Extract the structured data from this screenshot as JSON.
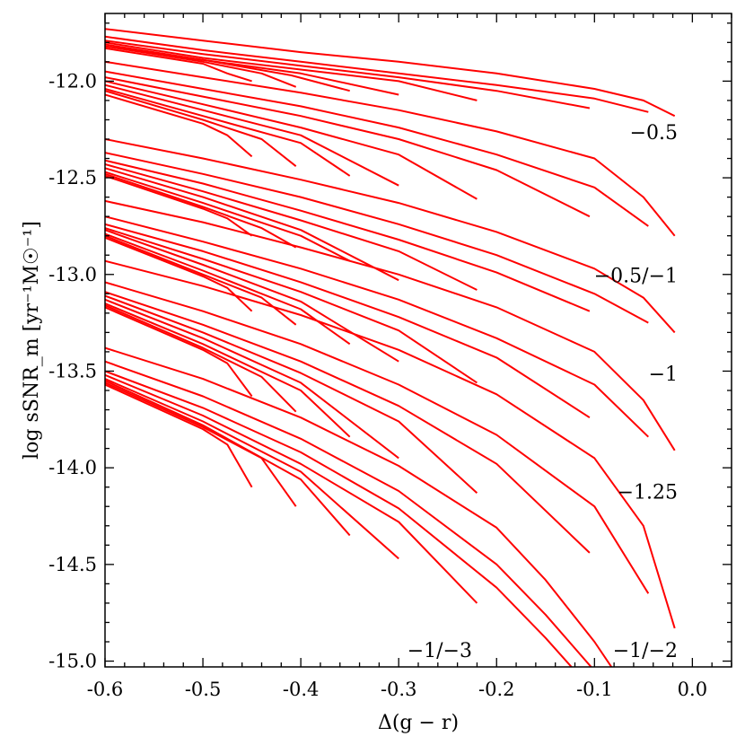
{
  "chart_data": {
    "type": "line",
    "title": "",
    "xlabel": "Δ(g − r)",
    "ylabel": "log sSNR_m [yr⁻¹M☉⁻¹]",
    "xlim": [
      -0.6,
      0.04
    ],
    "ylim": [
      -15.03,
      -11.65
    ],
    "grid": false,
    "legend": "none",
    "line_color": "#ff0000",
    "x_ticks": [
      -0.6,
      -0.5,
      -0.4,
      -0.3,
      -0.2,
      -0.1,
      0.0
    ],
    "x_tick_labels": [
      "-0.6",
      "-0.5",
      "-0.4",
      "-0.3",
      "-0.2",
      "-0.1",
      "0.0"
    ],
    "y_ticks": [
      -15.0,
      -14.5,
      -14.0,
      -13.5,
      -13.0,
      -12.5,
      -12.0
    ],
    "y_tick_labels": [
      "-15.0",
      "-14.5",
      "-14.0",
      "-13.5",
      "-13.0",
      "-12.5",
      "-12.0"
    ],
    "annotations": [
      {
        "text": "−0.5",
        "x": -0.015,
        "y": -12.3
      },
      {
        "text": "−0.5/−1",
        "x": -0.015,
        "y": -13.04
      },
      {
        "text": "−1",
        "x": -0.015,
        "y": -13.55
      },
      {
        "text": "−1.25",
        "x": -0.015,
        "y": -14.16
      },
      {
        "text": "−1/−3",
        "x": -0.225,
        "y": -14.98
      },
      {
        "text": "−1/−2",
        "x": -0.015,
        "y": -14.98
      }
    ],
    "series": [
      {
        "values": [
          [
            -0.6,
            -11.73
          ],
          [
            -0.5,
            -11.79
          ],
          [
            -0.4,
            -11.85
          ],
          [
            -0.3,
            -11.9
          ],
          [
            -0.2,
            -11.96
          ],
          [
            -0.1,
            -12.04
          ],
          [
            -0.05,
            -12.1
          ],
          [
            -0.018,
            -12.18
          ]
        ]
      },
      {
        "values": [
          [
            -0.6,
            -11.77
          ],
          [
            -0.5,
            -11.84
          ],
          [
            -0.4,
            -11.9
          ],
          [
            -0.3,
            -11.96
          ],
          [
            -0.2,
            -12.02
          ],
          [
            -0.1,
            -12.09
          ],
          [
            -0.045,
            -12.16
          ]
        ]
      },
      {
        "values": [
          [
            -0.6,
            -11.79
          ],
          [
            -0.5,
            -11.86
          ],
          [
            -0.4,
            -11.92
          ],
          [
            -0.3,
            -11.98
          ],
          [
            -0.2,
            -12.05
          ],
          [
            -0.105,
            -12.14
          ]
        ]
      },
      {
        "values": [
          [
            -0.6,
            -11.8
          ],
          [
            -0.5,
            -11.88
          ],
          [
            -0.4,
            -11.94
          ],
          [
            -0.3,
            -12.0
          ],
          [
            -0.22,
            -12.1
          ]
        ]
      },
      {
        "values": [
          [
            -0.6,
            -11.81
          ],
          [
            -0.5,
            -11.89
          ],
          [
            -0.4,
            -11.96
          ],
          [
            -0.3,
            -12.07
          ]
        ]
      },
      {
        "values": [
          [
            -0.6,
            -11.82
          ],
          [
            -0.5,
            -11.89
          ],
          [
            -0.41,
            -11.97
          ],
          [
            -0.35,
            -12.05
          ]
        ]
      },
      {
        "values": [
          [
            -0.6,
            -11.82
          ],
          [
            -0.5,
            -11.9
          ],
          [
            -0.44,
            -11.96
          ],
          [
            -0.405,
            -12.03
          ]
        ]
      },
      {
        "values": [
          [
            -0.6,
            -11.83
          ],
          [
            -0.5,
            -11.91
          ],
          [
            -0.475,
            -11.96
          ],
          [
            -0.45,
            -12.0
          ]
        ]
      },
      {
        "values": [
          [
            -0.6,
            -11.9
          ],
          [
            -0.5,
            -11.98
          ],
          [
            -0.4,
            -12.06
          ],
          [
            -0.3,
            -12.15
          ],
          [
            -0.2,
            -12.26
          ],
          [
            -0.1,
            -12.4
          ],
          [
            -0.05,
            -12.6
          ],
          [
            -0.018,
            -12.8
          ]
        ]
      },
      {
        "values": [
          [
            -0.6,
            -11.95
          ],
          [
            -0.5,
            -12.04
          ],
          [
            -0.4,
            -12.13
          ],
          [
            -0.3,
            -12.24
          ],
          [
            -0.2,
            -12.38
          ],
          [
            -0.1,
            -12.55
          ],
          [
            -0.045,
            -12.75
          ]
        ]
      },
      {
        "values": [
          [
            -0.6,
            -11.98
          ],
          [
            -0.5,
            -12.08
          ],
          [
            -0.4,
            -12.18
          ],
          [
            -0.3,
            -12.3
          ],
          [
            -0.2,
            -12.46
          ],
          [
            -0.105,
            -12.7
          ]
        ]
      },
      {
        "values": [
          [
            -0.6,
            -12.0
          ],
          [
            -0.5,
            -12.12
          ],
          [
            -0.4,
            -12.24
          ],
          [
            -0.3,
            -12.38
          ],
          [
            -0.22,
            -12.61
          ]
        ]
      },
      {
        "values": [
          [
            -0.6,
            -12.02
          ],
          [
            -0.5,
            -12.15
          ],
          [
            -0.4,
            -12.28
          ],
          [
            -0.3,
            -12.54
          ]
        ]
      },
      {
        "values": [
          [
            -0.6,
            -12.04
          ],
          [
            -0.5,
            -12.18
          ],
          [
            -0.4,
            -12.32
          ],
          [
            -0.35,
            -12.49
          ]
        ]
      },
      {
        "values": [
          [
            -0.6,
            -12.05
          ],
          [
            -0.5,
            -12.2
          ],
          [
            -0.44,
            -12.3
          ],
          [
            -0.405,
            -12.44
          ]
        ]
      },
      {
        "values": [
          [
            -0.6,
            -12.07
          ],
          [
            -0.5,
            -12.22
          ],
          [
            -0.475,
            -12.28
          ],
          [
            -0.45,
            -12.39
          ]
        ]
      },
      {
        "values": [
          [
            -0.6,
            -12.3
          ],
          [
            -0.5,
            -12.4
          ],
          [
            -0.4,
            -12.51
          ],
          [
            -0.3,
            -12.63
          ],
          [
            -0.2,
            -12.78
          ],
          [
            -0.1,
            -12.97
          ],
          [
            -0.05,
            -13.12
          ],
          [
            -0.018,
            -13.3
          ]
        ]
      },
      {
        "values": [
          [
            -0.6,
            -12.37
          ],
          [
            -0.5,
            -12.48
          ],
          [
            -0.4,
            -12.6
          ],
          [
            -0.3,
            -12.74
          ],
          [
            -0.2,
            -12.9
          ],
          [
            -0.1,
            -13.1
          ],
          [
            -0.045,
            -13.25
          ]
        ]
      },
      {
        "values": [
          [
            -0.6,
            -12.41
          ],
          [
            -0.5,
            -12.53
          ],
          [
            -0.4,
            -12.67
          ],
          [
            -0.3,
            -12.82
          ],
          [
            -0.2,
            -12.99
          ],
          [
            -0.105,
            -13.19
          ]
        ]
      },
      {
        "values": [
          [
            -0.6,
            -12.43
          ],
          [
            -0.5,
            -12.57
          ],
          [
            -0.4,
            -12.72
          ],
          [
            -0.3,
            -12.88
          ],
          [
            -0.22,
            -13.08
          ]
        ]
      },
      {
        "values": [
          [
            -0.6,
            -12.45
          ],
          [
            -0.5,
            -12.6
          ],
          [
            -0.4,
            -12.77
          ],
          [
            -0.3,
            -13.03
          ]
        ]
      },
      {
        "values": [
          [
            -0.6,
            -12.47
          ],
          [
            -0.5,
            -12.63
          ],
          [
            -0.4,
            -12.8
          ],
          [
            -0.35,
            -12.93
          ]
        ]
      },
      {
        "values": [
          [
            -0.6,
            -12.48
          ],
          [
            -0.5,
            -12.65
          ],
          [
            -0.44,
            -12.76
          ],
          [
            -0.405,
            -12.86
          ]
        ]
      },
      {
        "values": [
          [
            -0.6,
            -12.49
          ],
          [
            -0.5,
            -12.66
          ],
          [
            -0.475,
            -12.71
          ],
          [
            -0.45,
            -12.8
          ]
        ]
      },
      {
        "values": [
          [
            -0.6,
            -12.62
          ],
          [
            -0.5,
            -12.73
          ],
          [
            -0.4,
            -12.86
          ],
          [
            -0.3,
            -13.0
          ],
          [
            -0.2,
            -13.17
          ],
          [
            -0.1,
            -13.4
          ],
          [
            -0.05,
            -13.65
          ],
          [
            -0.018,
            -13.91
          ]
        ]
      },
      {
        "values": [
          [
            -0.6,
            -12.7
          ],
          [
            -0.5,
            -12.83
          ],
          [
            -0.4,
            -12.97
          ],
          [
            -0.3,
            -13.13
          ],
          [
            -0.2,
            -13.33
          ],
          [
            -0.1,
            -13.57
          ],
          [
            -0.045,
            -13.84
          ]
        ]
      },
      {
        "values": [
          [
            -0.6,
            -12.74
          ],
          [
            -0.5,
            -12.88
          ],
          [
            -0.4,
            -13.04
          ],
          [
            -0.3,
            -13.22
          ],
          [
            -0.2,
            -13.43
          ],
          [
            -0.105,
            -13.74
          ]
        ]
      },
      {
        "values": [
          [
            -0.6,
            -12.76
          ],
          [
            -0.5,
            -12.92
          ],
          [
            -0.4,
            -13.09
          ],
          [
            -0.3,
            -13.29
          ],
          [
            -0.22,
            -13.56
          ]
        ]
      },
      {
        "values": [
          [
            -0.6,
            -12.77
          ],
          [
            -0.5,
            -12.95
          ],
          [
            -0.4,
            -13.14
          ],
          [
            -0.3,
            -13.45
          ]
        ]
      },
      {
        "values": [
          [
            -0.6,
            -12.79
          ],
          [
            -0.5,
            -12.98
          ],
          [
            -0.4,
            -13.18
          ],
          [
            -0.35,
            -13.36
          ]
        ]
      },
      {
        "values": [
          [
            -0.6,
            -12.8
          ],
          [
            -0.5,
            -13.0
          ],
          [
            -0.44,
            -13.12
          ],
          [
            -0.405,
            -13.26
          ]
        ]
      },
      {
        "values": [
          [
            -0.6,
            -12.81
          ],
          [
            -0.5,
            -13.01
          ],
          [
            -0.475,
            -13.07
          ],
          [
            -0.45,
            -13.19
          ]
        ]
      },
      {
        "values": [
          [
            -0.6,
            -12.93
          ],
          [
            -0.5,
            -13.06
          ],
          [
            -0.4,
            -13.21
          ],
          [
            -0.3,
            -13.39
          ],
          [
            -0.2,
            -13.62
          ],
          [
            -0.1,
            -13.95
          ],
          [
            -0.05,
            -14.3
          ],
          [
            -0.018,
            -14.83
          ]
        ]
      },
      {
        "values": [
          [
            -0.6,
            -13.04
          ],
          [
            -0.5,
            -13.19
          ],
          [
            -0.4,
            -13.36
          ],
          [
            -0.3,
            -13.57
          ],
          [
            -0.2,
            -13.83
          ],
          [
            -0.1,
            -14.2
          ],
          [
            -0.045,
            -14.65
          ]
        ]
      },
      {
        "values": [
          [
            -0.6,
            -13.09
          ],
          [
            -0.5,
            -13.26
          ],
          [
            -0.4,
            -13.45
          ],
          [
            -0.3,
            -13.68
          ],
          [
            -0.2,
            -13.98
          ],
          [
            -0.105,
            -14.44
          ]
        ]
      },
      {
        "values": [
          [
            -0.6,
            -13.11
          ],
          [
            -0.5,
            -13.3
          ],
          [
            -0.4,
            -13.51
          ],
          [
            -0.3,
            -13.76
          ],
          [
            -0.22,
            -14.13
          ]
        ]
      },
      {
        "values": [
          [
            -0.6,
            -13.13
          ],
          [
            -0.5,
            -13.33
          ],
          [
            -0.4,
            -13.56
          ],
          [
            -0.3,
            -13.95
          ]
        ]
      },
      {
        "values": [
          [
            -0.6,
            -13.15
          ],
          [
            -0.5,
            -13.36
          ],
          [
            -0.4,
            -13.6
          ],
          [
            -0.35,
            -13.84
          ]
        ]
      },
      {
        "values": [
          [
            -0.6,
            -13.16
          ],
          [
            -0.5,
            -13.38
          ],
          [
            -0.44,
            -13.53
          ],
          [
            -0.405,
            -13.71
          ]
        ]
      },
      {
        "values": [
          [
            -0.6,
            -13.17
          ],
          [
            -0.5,
            -13.39
          ],
          [
            -0.475,
            -13.46
          ],
          [
            -0.45,
            -13.63
          ]
        ]
      },
      {
        "values": [
          [
            -0.6,
            -13.38
          ],
          [
            -0.5,
            -13.54
          ],
          [
            -0.4,
            -13.74
          ],
          [
            -0.3,
            -13.99
          ],
          [
            -0.2,
            -14.31
          ],
          [
            -0.15,
            -14.58
          ],
          [
            -0.1,
            -14.9
          ],
          [
            -0.08,
            -15.05
          ]
        ]
      },
      {
        "values": [
          [
            -0.6,
            -13.45
          ],
          [
            -0.5,
            -13.63
          ],
          [
            -0.4,
            -13.85
          ],
          [
            -0.3,
            -14.12
          ],
          [
            -0.2,
            -14.5
          ],
          [
            -0.15,
            -14.76
          ],
          [
            -0.1,
            -15.05
          ]
        ]
      },
      {
        "values": [
          [
            -0.6,
            -13.5
          ],
          [
            -0.5,
            -13.69
          ],
          [
            -0.4,
            -13.92
          ],
          [
            -0.3,
            -14.21
          ],
          [
            -0.2,
            -14.62
          ],
          [
            -0.15,
            -14.88
          ],
          [
            -0.12,
            -15.05
          ]
        ]
      },
      {
        "values": [
          [
            -0.6,
            -13.52
          ],
          [
            -0.5,
            -13.73
          ],
          [
            -0.4,
            -13.98
          ],
          [
            -0.3,
            -14.28
          ],
          [
            -0.22,
            -14.7
          ]
        ]
      },
      {
        "values": [
          [
            -0.6,
            -13.54
          ],
          [
            -0.5,
            -13.76
          ],
          [
            -0.4,
            -14.02
          ],
          [
            -0.3,
            -14.47
          ]
        ]
      },
      {
        "values": [
          [
            -0.6,
            -13.55
          ],
          [
            -0.5,
            -13.78
          ],
          [
            -0.4,
            -14.06
          ],
          [
            -0.35,
            -14.35
          ]
        ]
      },
      {
        "values": [
          [
            -0.6,
            -13.56
          ],
          [
            -0.5,
            -13.79
          ],
          [
            -0.44,
            -13.95
          ],
          [
            -0.405,
            -14.2
          ]
        ]
      },
      {
        "values": [
          [
            -0.6,
            -13.57
          ],
          [
            -0.5,
            -13.8
          ],
          [
            -0.475,
            -13.88
          ],
          [
            -0.45,
            -14.1
          ]
        ]
      }
    ]
  }
}
